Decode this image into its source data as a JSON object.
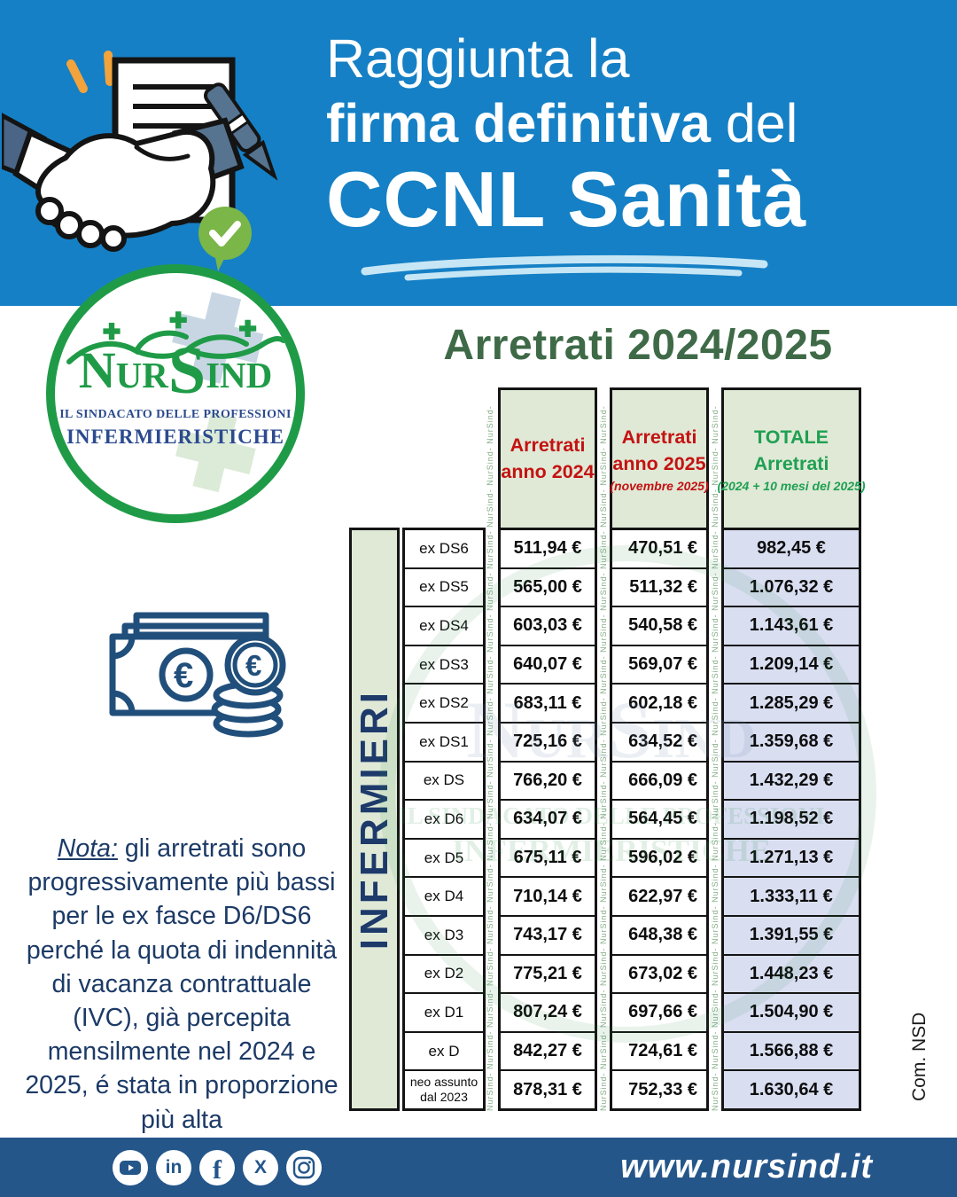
{
  "banner": {
    "l1": "Raggiunta la",
    "l2_bold": "firma definitiva",
    "l2_rest": " del",
    "l3": "CCNL Sanità"
  },
  "logo": {
    "name_pre": "Nur",
    "name_s": "S",
    "name_post": "ind",
    "sub1": "IL SINDACATO DELLE PROFESSIONI",
    "sub2": "INFERMIERISTICHE"
  },
  "section_title": "Arretrati 2024/2025",
  "table": {
    "group_label": "INFERMIERI",
    "watermark_text": "NurSind- ",
    "columns": {
      "c1": {
        "l1": "Arretrati",
        "l2": "anno 2024",
        "sub": ""
      },
      "c2": {
        "l1": "Arretrati",
        "l2": "anno 2025",
        "sub": "(novembre 2025)"
      },
      "c3": {
        "l1": "TOTALE Arretrati",
        "sub": "(2024 + 10 mesi del 2025)"
      }
    },
    "rows": [
      {
        "label": "ex DS6",
        "v2024": "511,94 €",
        "v2025": "470,51 €",
        "total": "982,45 €"
      },
      {
        "label": "ex DS5",
        "v2024": "565,00 €",
        "v2025": "511,32 €",
        "total": "1.076,32 €"
      },
      {
        "label": "ex DS4",
        "v2024": "603,03 €",
        "v2025": "540,58 €",
        "total": "1.143,61 €"
      },
      {
        "label": "ex DS3",
        "v2024": "640,07 €",
        "v2025": "569,07 €",
        "total": "1.209,14 €"
      },
      {
        "label": "ex DS2",
        "v2024": "683,11 €",
        "v2025": "602,18 €",
        "total": "1.285,29 €"
      },
      {
        "label": "ex DS1",
        "v2024": "725,16 €",
        "v2025": "634,52 €",
        "total": "1.359,68 €"
      },
      {
        "label": "ex DS",
        "v2024": "766,20 €",
        "v2025": "666,09 €",
        "total": "1.432,29 €"
      },
      {
        "label": "ex D6",
        "v2024": "634,07 €",
        "v2025": "564,45 €",
        "total": "1.198,52 €"
      },
      {
        "label": "ex D5",
        "v2024": "675,11 €",
        "v2025": "596,02 €",
        "total": "1.271,13 €"
      },
      {
        "label": "ex D4",
        "v2024": "710,14 €",
        "v2025": "622,97 €",
        "total": "1.333,11 €"
      },
      {
        "label": "ex D3",
        "v2024": "743,17 €",
        "v2025": "648,38 €",
        "total": "1.391,55 €"
      },
      {
        "label": "ex D2",
        "v2024": "775,21 €",
        "v2025": "673,02 €",
        "total": "1.448,23 €"
      },
      {
        "label": "ex D1",
        "v2024": "807,24 €",
        "v2025": "697,66 €",
        "total": "1.504,90 €"
      },
      {
        "label": "ex D",
        "v2024": "842,27 €",
        "v2025": "724,61 €",
        "total": "1.566,88 €"
      },
      {
        "label": "neo assunto dal 2023",
        "v2024": "878,31 €",
        "v2025": "752,33 €",
        "total": "1.630,64 €"
      }
    ]
  },
  "note": {
    "label": "Nota:",
    "text": " gli arretrati sono progressivamente più bassi per le ex fasce D6/DS6 perché la quota di indennità di vacanza contrattuale (IVC), già percepita mensilmente nel 2024 e 2025, é stata in proporzione più alta"
  },
  "credit": "Com. NSD",
  "footer": {
    "website": "www.nursind.it",
    "social_icons": [
      "youtube-icon",
      "linkedin-icon",
      "facebook-icon",
      "x-icon",
      "instagram-icon"
    ]
  },
  "colors": {
    "banner_blue": "#1580c5",
    "footer_blue": "#24568a",
    "accent_red": "#c41212",
    "accent_green": "#1fa052",
    "logo_green": "#1f9b47",
    "heading_green": "#3e6a47",
    "navy_text": "#1c3a66",
    "header_cell_bg": "#dfe9d6",
    "total_cell_bg": "#d9def1",
    "check_green": "#7ab648",
    "spark_orange": "#f2a33c"
  }
}
